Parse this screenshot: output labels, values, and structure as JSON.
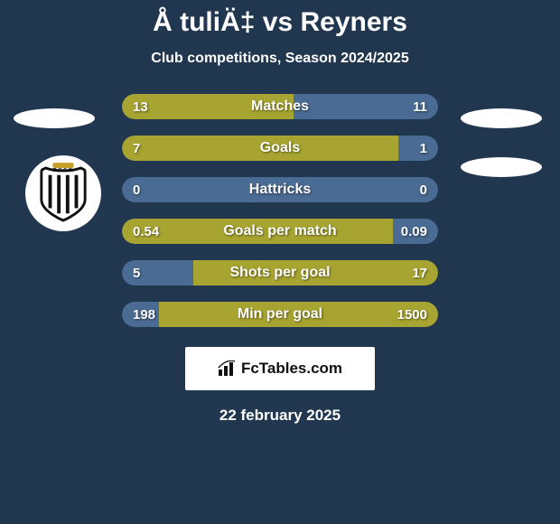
{
  "header": {
    "title": "Å tuliÄ‡ vs Reyners",
    "subtitle": "Club competitions, Season 2024/2025"
  },
  "colors": {
    "left": "#a7a431",
    "right": "#4a6b93",
    "neutral_bg": "#4a6b93"
  },
  "stats": [
    {
      "label": "Matches",
      "left_val": "13",
      "right_val": "11",
      "left_pct": 54.2,
      "style": "split"
    },
    {
      "label": "Goals",
      "left_val": "7",
      "right_val": "1",
      "left_pct": 87.5,
      "style": "split"
    },
    {
      "label": "Hattricks",
      "left_val": "0",
      "right_val": "0",
      "left_pct": 0,
      "style": "neutral"
    },
    {
      "label": "Goals per match",
      "left_val": "0.54",
      "right_val": "0.09",
      "left_pct": 85.7,
      "style": "split"
    },
    {
      "label": "Shots per goal",
      "left_val": "5",
      "right_val": "17",
      "left_pct": 77.3,
      "style": "inverse"
    },
    {
      "label": "Min per goal",
      "left_val": "198",
      "right_val": "1500",
      "left_pct": 88.3,
      "style": "inverse"
    }
  ],
  "brand": {
    "text": "FcTables.com"
  },
  "footer": {
    "date": "22 february 2025"
  }
}
